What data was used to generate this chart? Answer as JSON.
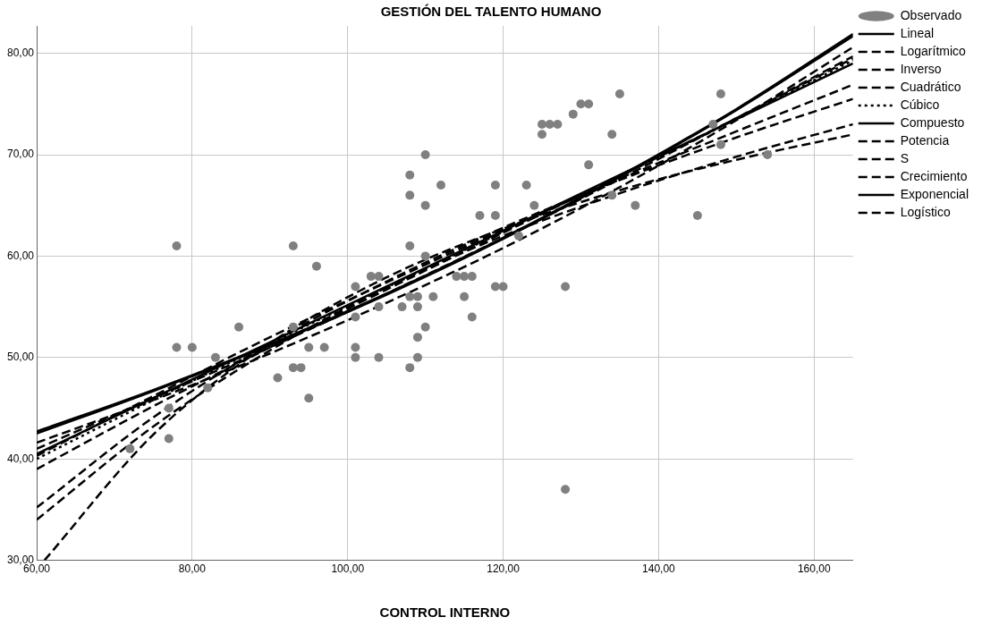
{
  "chart_data": {
    "type": "scatter",
    "title": "GESTIÓN DEL TALENTO HUMANO",
    "xlabel": "CONTROL INTERNO",
    "xlim": [
      60,
      165
    ],
    "ylim": [
      30,
      82.7
    ],
    "xticks": [
      {
        "value": 60,
        "label": "60,00"
      },
      {
        "value": 80,
        "label": "80,00"
      },
      {
        "value": 100,
        "label": "100,00"
      },
      {
        "value": 120,
        "label": "120,00"
      },
      {
        "value": 140,
        "label": "140,00"
      },
      {
        "value": 160,
        "label": "160,00"
      }
    ],
    "yticks": [
      {
        "value": 30,
        "label": "30,00"
      },
      {
        "value": 40,
        "label": "40,00"
      },
      {
        "value": 50,
        "label": "50,00"
      },
      {
        "value": 60,
        "label": "60,00"
      },
      {
        "value": 70,
        "label": "70,00"
      },
      {
        "value": 80,
        "label": "80,00"
      }
    ],
    "grid": true,
    "legend": "right",
    "series": [
      {
        "name": "Observado",
        "marker": "circle",
        "color": "#808080",
        "x": [
          78,
          78,
          80,
          77,
          77,
          72,
          82,
          83,
          86,
          91,
          93,
          93,
          93,
          94,
          95,
          95,
          96,
          97,
          101,
          101,
          101,
          101,
          103,
          104,
          104,
          104,
          107,
          108,
          108,
          108,
          108,
          108,
          109,
          109,
          109,
          109,
          110,
          110,
          110,
          110,
          111,
          112,
          114,
          115,
          115,
          116,
          116,
          117,
          119,
          119,
          119,
          120,
          122,
          123,
          124,
          125,
          125,
          126,
          127,
          128,
          128,
          129,
          130,
          131,
          131,
          134,
          134,
          135,
          137,
          145,
          147,
          148,
          148,
          154
        ],
        "values": [
          61,
          51,
          51,
          45,
          42,
          41,
          47,
          50,
          53,
          48,
          61,
          53,
          49,
          49,
          51,
          46,
          59,
          51,
          57,
          54,
          51,
          50,
          58,
          58,
          55,
          50,
          55,
          68,
          66,
          61,
          56,
          49,
          56,
          55,
          52,
          50,
          70,
          65,
          60,
          53,
          56,
          67,
          58,
          58,
          56,
          58,
          54,
          64,
          67,
          64,
          57,
          57,
          62,
          67,
          65,
          73,
          72,
          73,
          73,
          57,
          37,
          74,
          75,
          75,
          69,
          72,
          66,
          76,
          65,
          64,
          73,
          76,
          71,
          70
        ]
      },
      {
        "name": "Lineal",
        "type": "line",
        "line_style": "solid",
        "color": "#000000",
        "x": [
          60,
          75,
          90,
          105,
          120,
          135,
          150,
          165
        ],
        "values": [
          40.5,
          46.0,
          51.5,
          57.0,
          62.5,
          68.0,
          73.5,
          79.0
        ]
      },
      {
        "name": "Logarítmico",
        "type": "line",
        "line_style": "dashed",
        "color": "#000000",
        "x": [
          60,
          75,
          90,
          105,
          120,
          135,
          150,
          165
        ],
        "values": [
          35.2,
          44.1,
          51.4,
          57.5,
          62.8,
          67.5,
          71.7,
          75.5
        ]
      },
      {
        "name": "Inverso",
        "type": "line",
        "line_style": "dashed",
        "color": "#000000",
        "x": [
          61,
          75,
          90,
          105,
          120,
          135,
          150,
          165
        ],
        "values": [
          30.0,
          42.4,
          51.4,
          57.9,
          62.7,
          66.5,
          69.5,
          72.0
        ]
      },
      {
        "name": "Cuadrático",
        "type": "line",
        "line_style": "dashed",
        "color": "#000000",
        "x": [
          60,
          75,
          90,
          105,
          120,
          135,
          150,
          165
        ],
        "values": [
          39.0,
          45.2,
          51.0,
          56.7,
          62.3,
          67.9,
          73.6,
          79.5
        ]
      },
      {
        "name": "Cúbico",
        "type": "line",
        "line_style": "dotted",
        "color": "#000000",
        "x": [
          60,
          75,
          90,
          105,
          120,
          135,
          150,
          165
        ],
        "values": [
          40.0,
          45.8,
          51.4,
          56.9,
          62.4,
          67.9,
          73.5,
          79.3
        ]
      },
      {
        "name": "Compuesto",
        "type": "line",
        "line_style": "solid",
        "color": "#000000",
        "x": [
          60,
          75,
          90,
          105,
          120,
          135,
          150,
          165
        ],
        "values": [
          42.5,
          46.7,
          51.2,
          56.2,
          61.7,
          67.8,
          74.4,
          81.7
        ]
      },
      {
        "name": "Potencia",
        "type": "line",
        "line_style": "dashed",
        "color": "#000000",
        "x": [
          60,
          75,
          90,
          105,
          120,
          135,
          150,
          165
        ],
        "values": [
          40.3,
          46.2,
          52.0,
          57.4,
          62.6,
          67.6,
          72.3,
          76.9
        ]
      },
      {
        "name": "S",
        "type": "line",
        "line_style": "dashed",
        "color": "#000000",
        "x": [
          60,
          75,
          90,
          105,
          120,
          135,
          150,
          165
        ],
        "values": [
          34.0,
          43.2,
          50.7,
          56.9,
          62.0,
          66.2,
          69.8,
          73.0
        ]
      },
      {
        "name": "Crecimiento",
        "type": "line",
        "line_style": "dashed",
        "color": "#000000",
        "x": [
          60,
          75,
          90,
          105,
          120,
          135,
          150,
          165
        ],
        "values": [
          41.6,
          45.8,
          50.4,
          55.4,
          60.8,
          66.8,
          73.4,
          80.6
        ]
      },
      {
        "name": "Exponencial",
        "type": "line",
        "line_style": "solid",
        "color": "#000000",
        "x": [
          60,
          75,
          90,
          105,
          120,
          135,
          150,
          165
        ],
        "values": [
          42.7,
          46.8,
          51.3,
          56.3,
          61.8,
          67.9,
          74.5,
          81.9
        ]
      },
      {
        "name": "Logístico",
        "type": "line",
        "line_style": "dashed",
        "color": "#000000",
        "x": [
          60,
          75,
          90,
          105,
          120,
          135,
          150,
          165
        ],
        "values": [
          41.0,
          46.0,
          51.0,
          56.3,
          61.8,
          67.6,
          73.6,
          79.7
        ]
      }
    ]
  }
}
